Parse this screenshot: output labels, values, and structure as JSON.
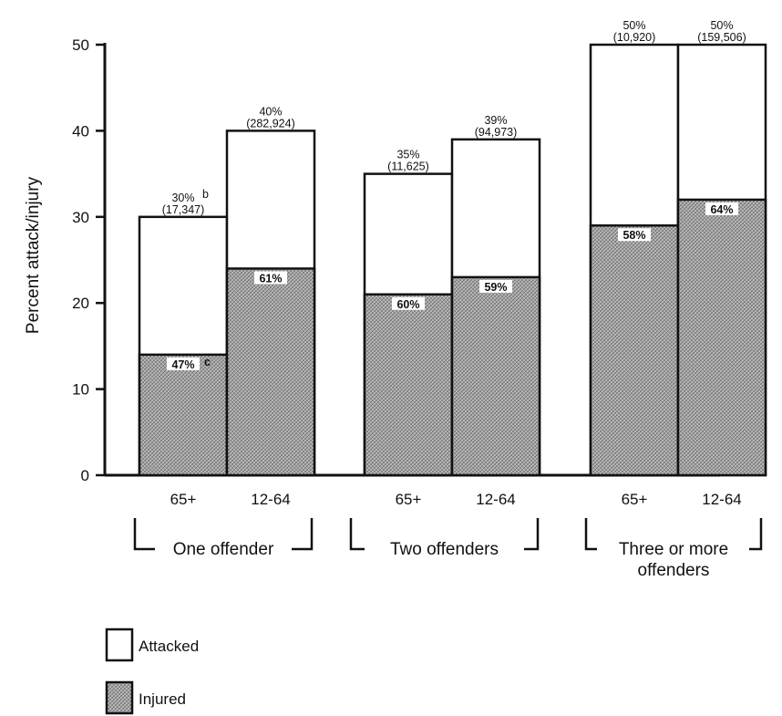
{
  "chart_data": {
    "type": "bar",
    "ylabel": "Percent attack/injury",
    "ylim": [
      0,
      50
    ],
    "yticks": [
      "0",
      "10",
      "20",
      "30",
      "40",
      "50"
    ],
    "groups": [
      {
        "label": "One offender",
        "label_lines": [
          "One offender"
        ]
      },
      {
        "label": "Two offenders",
        "label_lines": [
          "Two offenders"
        ]
      },
      {
        "label": "Three or more offenders",
        "label_lines": [
          "Three or more",
          "offenders"
        ]
      }
    ],
    "bars": [
      {
        "group": 0,
        "category": "65+",
        "attacked": 30,
        "injured": 14,
        "attacked_label": "30%",
        "attacked_note": "b",
        "count_label": "(17,347)",
        "injured_label": "47%",
        "injured_note": "c"
      },
      {
        "group": 0,
        "category": "12-64",
        "attacked": 40,
        "injured": 24,
        "attacked_label": "40%",
        "attacked_note": "",
        "count_label": "(282,924)",
        "injured_label": "61%",
        "injured_note": ""
      },
      {
        "group": 1,
        "category": "65+",
        "attacked": 35,
        "injured": 21,
        "attacked_label": "35%",
        "attacked_note": "",
        "count_label": "(11,625)",
        "injured_label": "60%",
        "injured_note": ""
      },
      {
        "group": 1,
        "category": "12-64",
        "attacked": 39,
        "injured": 23,
        "attacked_label": "39%",
        "attacked_note": "",
        "count_label": "(94,973)",
        "injured_label": "59%",
        "injured_note": ""
      },
      {
        "group": 2,
        "category": "65+",
        "attacked": 50,
        "injured": 29,
        "attacked_label": "50%",
        "attacked_note": "",
        "count_label": "(10,920)",
        "injured_label": "58%",
        "injured_note": ""
      },
      {
        "group": 2,
        "category": "12-64",
        "attacked": 50,
        "injured": 32,
        "attacked_label": "50%",
        "attacked_note": "",
        "count_label": "(159,506)",
        "injured_label": "64%",
        "injured_note": ""
      }
    ],
    "legend": [
      {
        "name": "Attacked",
        "color": "#ffffff"
      },
      {
        "name": "Injured",
        "color": "#9a9a9a"
      }
    ],
    "legend_position": "bottom-left",
    "grid": false
  }
}
